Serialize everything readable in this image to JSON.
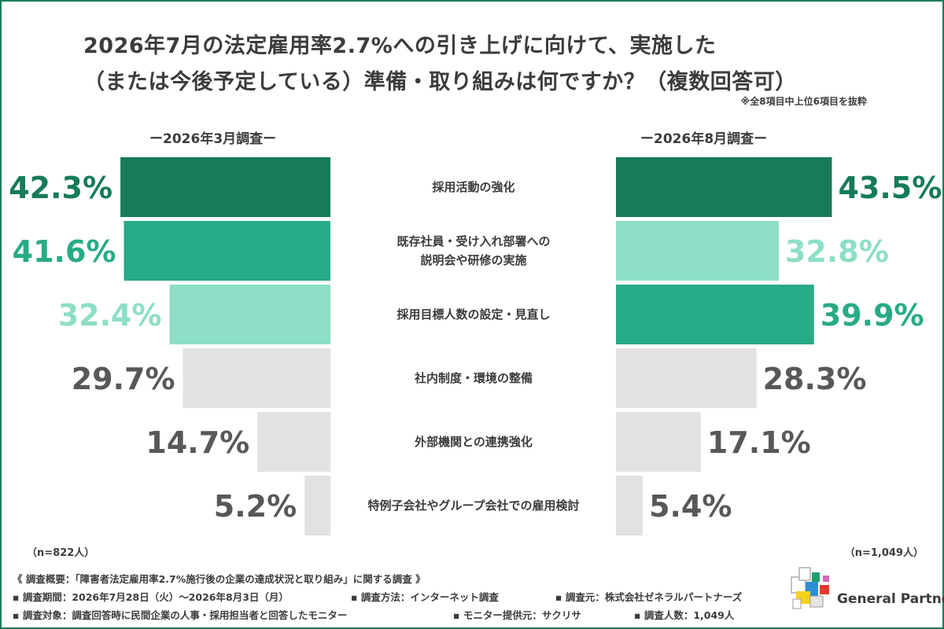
{
  "header": {
    "title_line_1": "2026年7月の法定雇用率2.7%への引き上げに向けて、実施した",
    "title_line_2": "（または今後予定している）準備・取り組みは何ですか？（複数回答可）",
    "note": "※全8項目中上位6項目を抜粋"
  },
  "chart_data": {
    "type": "bar",
    "orientation": "horizontal-butterfly",
    "categories": [
      [
        "採用活動の強化"
      ],
      [
        "既存社員・受け入れ部署への",
        "説明会や研修の実施"
      ],
      [
        "採用目標人数の設定・見直し"
      ],
      [
        "社内制度・環境の整備"
      ],
      [
        "外部機関との連携強化"
      ],
      [
        "特例子会社やグループ会社での雇用検討"
      ]
    ],
    "series": [
      {
        "name": "ー2026年3月調査ー",
        "values": [
          42.3,
          41.6,
          32.4,
          29.7,
          14.7,
          5.2
        ],
        "labels": [
          "42.3%",
          "41.6%",
          "32.4%",
          "29.7%",
          "14.7%",
          "5.2%"
        ],
        "n": "（n=822人）",
        "side": "left"
      },
      {
        "name": "ー2026年8月調査ー",
        "values": [
          43.5,
          32.8,
          39.9,
          28.3,
          17.1,
          5.4
        ],
        "labels": [
          "43.5%",
          "32.8%",
          "39.9%",
          "28.3%",
          "17.1%",
          "5.4%"
        ],
        "n": "（n=1,049人）",
        "side": "right"
      }
    ],
    "unit": "%",
    "rank_colors": [
      "#167a5b",
      "#27ab86",
      "#8ddfc7",
      "#e3e1e4"
    ],
    "rank_label_colors": [
      "#167a5b",
      "#27ab86",
      "#8ddfc7",
      "#595757"
    ]
  },
  "footer": {
    "title": "《 調査概要：「障害者法定雇用率2.7%施行後の企業の達成状況と取り組み」に関する調査 》",
    "row1": {
      "period": "▪ 調査期間：2026年7月28日（火）〜2026年8月3日（月）",
      "method": "▪ 調査方法：インターネット調査",
      "source": "▪ 調査元：株式会社ゼネラルパートナーズ"
    },
    "row2": {
      "target": "▪ 調査対象：調査回答時に民間企業の人事・採用担当者と回答したモニター",
      "provider": "▪ モニター提供元：サクリサ",
      "count": "▪ 調査人数：1,049人"
    }
  },
  "logo": {
    "text": "General Partners"
  }
}
